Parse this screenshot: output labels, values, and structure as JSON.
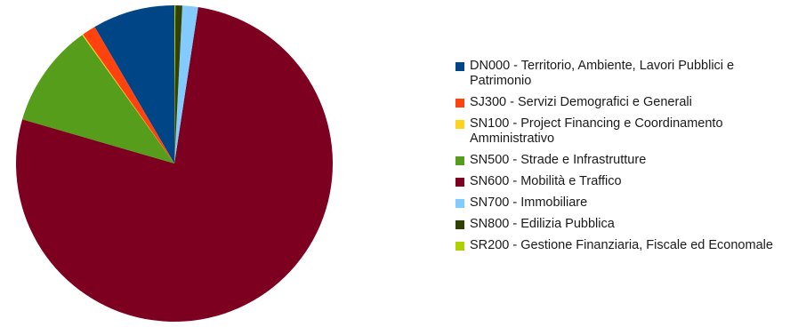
{
  "chart_data": {
    "type": "pie",
    "slices": [
      {
        "label": "DN000 - Territorio, Ambiente, Lavori Pubblici e Patrimonio",
        "value": 8.4,
        "color": "#004586"
      },
      {
        "label": "SJ300 - Servizi Demografici e Generali",
        "value": 1.4,
        "color": "#ff420e"
      },
      {
        "label": "SN100 - Project Financing e Coordinamento Amministrativo",
        "value": 0.1,
        "color": "#ffd320"
      },
      {
        "label": "SN500 - Strade e Infrastrutture",
        "value": 10.6,
        "color": "#579d1c"
      },
      {
        "label": "SN600 - Mobilità e Traffico",
        "value": 77.1,
        "color": "#7e0021"
      },
      {
        "label": "SN700 - Immobiliare",
        "value": 1.6,
        "color": "#83caff"
      },
      {
        "label": "SN800 - Edilizia Pubblica",
        "value": 0.7,
        "color": "#314004"
      },
      {
        "label": "SR200 - Gestione Finanziaria, Fiscale ed Economale",
        "value": 0.1,
        "color": "#aecf00"
      }
    ],
    "legend_position": "right"
  }
}
